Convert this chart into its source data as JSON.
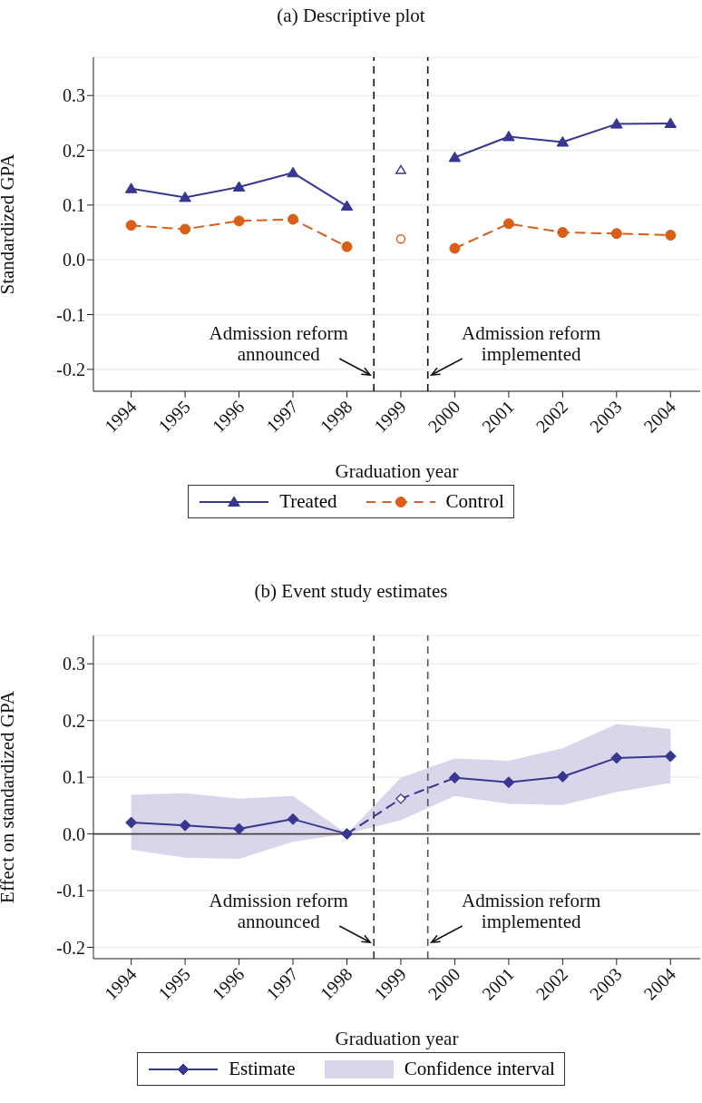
{
  "chart_data": [
    {
      "type": "line",
      "title": "(a) Descriptive plot",
      "xlabel": "Graduation year",
      "ylabel": "Standardized GPA",
      "x": [
        1994,
        1995,
        1996,
        1997,
        1998,
        1999,
        2000,
        2001,
        2002,
        2003,
        2004
      ],
      "xlim": [
        1993.3,
        2004.55
      ],
      "xticks": [
        1994,
        1995,
        1996,
        1997,
        1998,
        1999,
        2000,
        2001,
        2002,
        2003,
        2004
      ],
      "ylim": [
        -0.24,
        0.37
      ],
      "yticks": [
        -0.2,
        -0.1,
        {
          "value": 0,
          "label": "0.0"
        },
        0.1,
        0.2,
        0.3
      ],
      "grid": "y",
      "legend": "bottom",
      "ref_lines": [
        {
          "axis": "x",
          "value": 1998.5,
          "color": "#111111",
          "line_style": "dashed"
        },
        {
          "axis": "x",
          "value": 1999.5,
          "color": "#111111",
          "line_style": "dashed"
        }
      ],
      "annotations": [
        "Admission reform\nannounced",
        "Admission reform\nimplemented"
      ],
      "series": [
        {
          "name": "Treated",
          "color": "#373791",
          "marker": "triangle",
          "line_style": "solid",
          "values": [
            0.13,
            0.114,
            0.133,
            0.159,
            0.098,
            null,
            0.187,
            0.225,
            0.215,
            0.248,
            0.249
          ]
        },
        {
          "name": "Control",
          "color": "#d95f16",
          "marker": "circle",
          "line_style": "dashed",
          "values": [
            0.063,
            0.056,
            0.071,
            0.074,
            0.024,
            null,
            0.021,
            0.066,
            0.05,
            0.048,
            0.045
          ]
        },
        {
          "type": "scatter",
          "color": "#373791",
          "marker": "triangle",
          "x": [
            1999
          ],
          "values": [
            0.164
          ]
        },
        {
          "type": "scatter",
          "color": "#d95f16",
          "marker": "circle",
          "x": [
            1999
          ],
          "values": [
            0.038
          ]
        }
      ]
    },
    {
      "type": "line",
      "title": "(b) Event study estimates",
      "xlabel": "Graduation year",
      "ylabel": "Effect on standardized GPA",
      "x": [
        1994,
        1995,
        1996,
        1997,
        1998,
        1999,
        2000,
        2001,
        2002,
        2003,
        2004
      ],
      "xlim": [
        1993.3,
        2004.55
      ],
      "xticks": [
        1994,
        1995,
        1996,
        1997,
        1998,
        1999,
        2000,
        2001,
        2002,
        2003,
        2004
      ],
      "ylim": [
        -0.22,
        0.35
      ],
      "yticks": [
        -0.2,
        -0.1,
        {
          "value": 0,
          "label": "0.0"
        },
        0.1,
        0.2,
        0.3
      ],
      "grid": "y",
      "legend": "bottom",
      "ref_lines": [
        {
          "axis": "x",
          "value": 1998.5,
          "color": "#333333",
          "line_style": "dashed"
        },
        {
          "axis": "x",
          "value": 1999.5,
          "color": "#555555",
          "line_style": "dashed"
        },
        {
          "axis": "y",
          "value": 0,
          "color": "#444444",
          "line_style": "solid"
        }
      ],
      "annotations": [
        "Admission reform\nannounced",
        "Admission reform\nimplemented"
      ],
      "series": [
        {
          "name": "Estimate",
          "color": "#373791",
          "marker": "diamond",
          "line_style": "solid",
          "values": [
            0.02,
            0.015,
            0.009,
            0.026,
            0,
            null,
            0.099,
            0.091,
            0.101,
            0.134,
            0.137
          ]
        },
        {
          "type": "area",
          "name": "Confidence interval",
          "color": "#d9d6ec",
          "values": [
            null,
            null,
            null,
            null,
            null,
            null,
            null,
            null,
            null,
            null,
            null
          ],
          "lower": [
            -0.028,
            -0.042,
            -0.044,
            -0.014,
            0,
            0.024,
            0.067,
            0.053,
            0.051,
            0.074,
            0.09
          ],
          "upper": [
            0.069,
            0.072,
            0.062,
            0.067,
            0,
            0.099,
            0.133,
            0.129,
            0.151,
            0.194,
            0.185
          ]
        },
        {
          "color": "#35358e",
          "marker": "none",
          "line_style": "dashed",
          "x": [
            1998,
            1999,
            2000
          ],
          "values": [
            0,
            0.062,
            0.099
          ]
        },
        {
          "type": "scatter",
          "color": "#373791",
          "marker": "diamond",
          "x": [
            1999
          ],
          "values": [
            0.062
          ]
        }
      ]
    }
  ]
}
